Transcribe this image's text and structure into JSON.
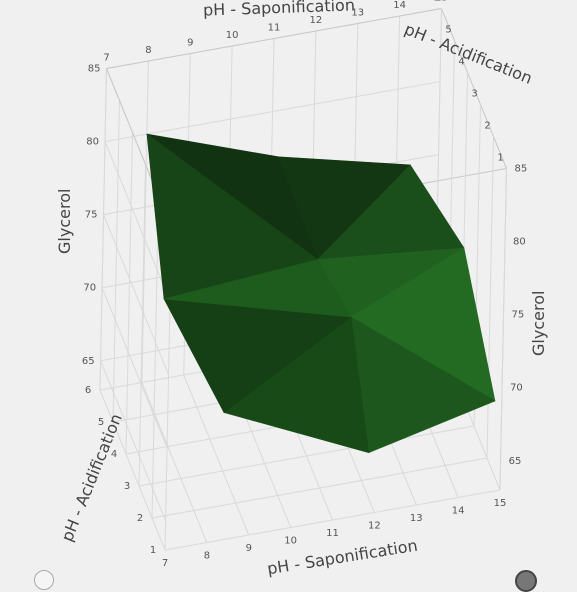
{
  "chart_data": {
    "type": "surface3d",
    "x_axis": {
      "label": "pH - Saponification",
      "range": [
        7,
        15
      ],
      "ticks": [
        7,
        8,
        9,
        10,
        11,
        12,
        13,
        14,
        15
      ]
    },
    "y_axis": {
      "label": "pH - Acidification",
      "range": [
        1,
        6
      ],
      "ticks": [
        1,
        2,
        3,
        4,
        5,
        6
      ]
    },
    "z_axis": {
      "label": "Glycerol",
      "range": [
        63,
        85
      ],
      "ticks": [
        65,
        70,
        75,
        80,
        85
      ]
    },
    "surface_color": "#1e5c1e",
    "surface_points": [
      {
        "x": 8,
        "y": 6,
        "z": 80
      },
      {
        "x": 11,
        "y": 5.5,
        "z": 78
      },
      {
        "x": 14,
        "y": 5,
        "z": 77
      },
      {
        "x": 15,
        "y": 4,
        "z": 73
      },
      {
        "x": 15,
        "y": 1.5,
        "z": 68
      },
      {
        "x": 12,
        "y": 1.5,
        "z": 66
      },
      {
        "x": 9,
        "y": 3,
        "z": 67
      },
      {
        "x": 8,
        "y": 4.5,
        "z": 72
      },
      {
        "x": 11.5,
        "y": 4,
        "z": 74
      },
      {
        "x": 12,
        "y": 3,
        "z": 72
      }
    ],
    "grid": true
  },
  "controls": {
    "knob_left_color": "#f5f5f5",
    "knob_right_color": "#777777"
  }
}
